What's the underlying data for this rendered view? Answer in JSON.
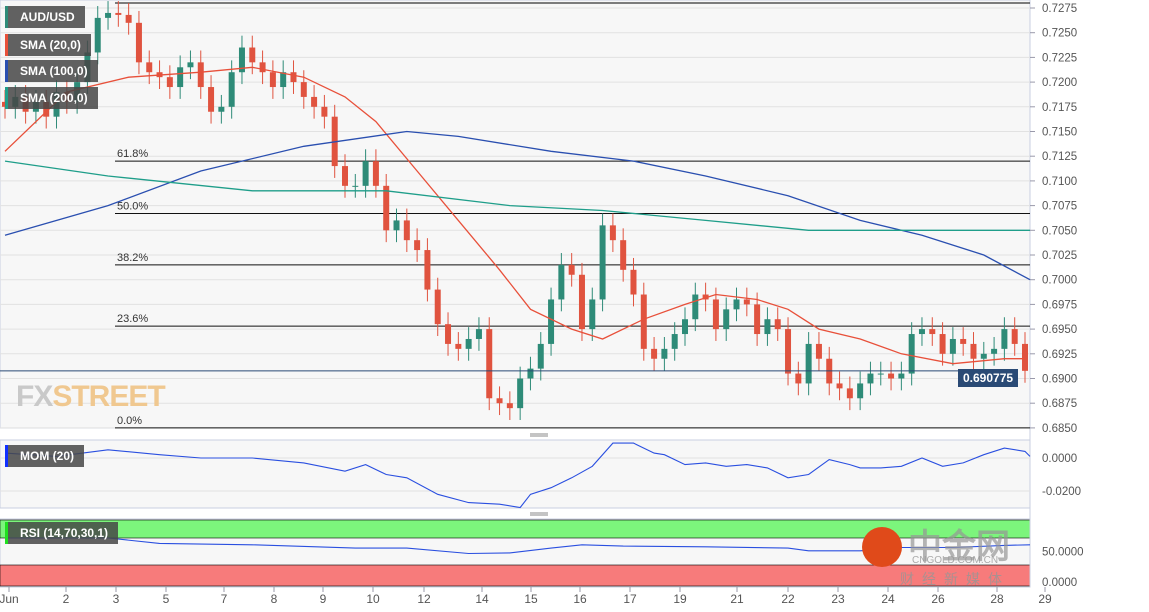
{
  "chart_data": {
    "type": "candlestick",
    "symbol": "AUD/USD",
    "ylim": [
      0.685,
      0.728
    ],
    "yticks": [
      "0.7275",
      "0.7250",
      "0.7225",
      "0.7200",
      "0.7175",
      "0.7150",
      "0.7125",
      "0.7100",
      "0.7075",
      "0.7050",
      "0.7025",
      "0.7000",
      "0.6975",
      "0.6950",
      "0.6925",
      "0.6900",
      "0.6875",
      "0.6850"
    ],
    "xticks": [
      "Jun",
      "2",
      "3",
      "5",
      "7",
      "8",
      "9",
      "10",
      "12",
      "14",
      "15",
      "16",
      "17",
      "19",
      "21",
      "22",
      "23",
      "24",
      "26",
      "28",
      "29"
    ],
    "closes": [
      0.7175,
      0.7185,
      0.717,
      0.718,
      0.7165,
      0.719,
      0.718,
      0.72,
      0.723,
      0.7265,
      0.727,
      0.7268,
      0.726,
      0.722,
      0.721,
      0.7205,
      0.7195,
      0.7215,
      0.722,
      0.7195,
      0.717,
      0.7175,
      0.721,
      0.7235,
      0.722,
      0.721,
      0.7195,
      0.721,
      0.72,
      0.7185,
      0.7175,
      0.7165,
      0.7115,
      0.7095,
      0.7095,
      0.712,
      0.7095,
      0.705,
      0.706,
      0.704,
      0.703,
      0.699,
      0.6955,
      0.6935,
      0.693,
      0.694,
      0.695,
      0.688,
      0.6875,
      0.687,
      0.69,
      0.691,
      0.6935,
      0.698,
      0.7015,
      0.7005,
      0.695,
      0.698,
      0.7055,
      0.704,
      0.701,
      0.6985,
      0.693,
      0.692,
      0.693,
      0.6945,
      0.696,
      0.6985,
      0.698,
      0.695,
      0.697,
      0.698,
      0.6975,
      0.6945,
      0.696,
      0.695,
      0.6905,
      0.6895,
      0.6935,
      0.692,
      0.6895,
      0.689,
      0.688,
      0.6895,
      0.6905,
      0.6905,
      0.69,
      0.6905,
      0.6945,
      0.695,
      0.6945,
      0.6925,
      0.694,
      0.6935,
      0.692,
      0.6925,
      0.693,
      0.695,
      0.6935,
      0.690775
    ],
    "overlays": [
      {
        "name": "SMA (20,0)",
        "color": "#e8503a",
        "points": [
          [
            0,
            0.713
          ],
          [
            6,
            0.719
          ],
          [
            12,
            0.7205
          ],
          [
            19,
            0.721
          ],
          [
            24,
            0.7215
          ],
          [
            29,
            0.7205
          ],
          [
            33,
            0.7185
          ],
          [
            36,
            0.716
          ],
          [
            40,
            0.711
          ],
          [
            44,
            0.706
          ],
          [
            48,
            0.701
          ],
          [
            51,
            0.697
          ],
          [
            55,
            0.695
          ],
          [
            58,
            0.694
          ],
          [
            62,
            0.696
          ],
          [
            66,
            0.6975
          ],
          [
            69,
            0.6985
          ],
          [
            73,
            0.698
          ],
          [
            76,
            0.697
          ],
          [
            79,
            0.695
          ],
          [
            83,
            0.694
          ],
          [
            87,
            0.6925
          ],
          [
            92,
            0.6915
          ],
          [
            97,
            0.692
          ],
          [
            99,
            0.692
          ]
        ]
      },
      {
        "name": "SMA (100,0)",
        "color": "#2a4fb0",
        "points": [
          [
            0,
            0.7045
          ],
          [
            10,
            0.7075
          ],
          [
            19,
            0.711
          ],
          [
            29,
            0.7135
          ],
          [
            39,
            0.715
          ],
          [
            44,
            0.7145
          ],
          [
            53,
            0.713
          ],
          [
            61,
            0.712
          ],
          [
            68,
            0.7105
          ],
          [
            76,
            0.7085
          ],
          [
            83,
            0.706
          ],
          [
            89,
            0.7045
          ],
          [
            95,
            0.7025
          ],
          [
            100,
            0.7
          ]
        ]
      },
      {
        "name": "SMA (200,0)",
        "color": "#1f9e8a",
        "points": [
          [
            0,
            0.712
          ],
          [
            10,
            0.7105
          ],
          [
            24,
            0.709
          ],
          [
            37,
            0.709
          ],
          [
            49,
            0.7075
          ],
          [
            58,
            0.707
          ],
          [
            68,
            0.706
          ],
          [
            78,
            0.705
          ],
          [
            87,
            0.705
          ],
          [
            100,
            0.705
          ]
        ]
      }
    ],
    "fibonacci": [
      {
        "label": "61.8%",
        "value": 0.712
      },
      {
        "label": "50.0%",
        "value": 0.7067
      },
      {
        "label": "38.2%",
        "value": 0.7015
      },
      {
        "label": "23.6%",
        "value": 0.6953
      },
      {
        "label": "0.0%",
        "value": 0.685
      }
    ],
    "last_price": "0.690775",
    "momentum": {
      "label": "MOM (20)",
      "color": "#2a4fe0",
      "yticks": [
        "0.0000",
        "-0.0200"
      ],
      "points": [
        [
          0,
          0.003
        ],
        [
          5,
          0.001
        ],
        [
          10,
          0.005
        ],
        [
          15,
          0.002
        ],
        [
          19,
          0.0
        ],
        [
          24,
          0.0
        ],
        [
          29,
          -0.003
        ],
        [
          33,
          -0.008
        ],
        [
          35,
          -0.004
        ],
        [
          37,
          -0.01
        ],
        [
          39,
          -0.012
        ],
        [
          42,
          -0.022
        ],
        [
          45,
          -0.027
        ],
        [
          48,
          -0.028
        ],
        [
          50,
          -0.03
        ],
        [
          51,
          -0.022
        ],
        [
          53,
          -0.018
        ],
        [
          55,
          -0.012
        ],
        [
          57,
          -0.005
        ],
        [
          59,
          0.009
        ],
        [
          61,
          0.009
        ],
        [
          63,
          0.003
        ],
        [
          64,
          0.002
        ],
        [
          66,
          -0.004
        ],
        [
          68,
          -0.003
        ],
        [
          70,
          -0.005
        ],
        [
          72,
          -0.004
        ],
        [
          74,
          -0.006
        ],
        [
          76,
          -0.012
        ],
        [
          78,
          -0.01
        ],
        [
          80,
          -0.001
        ],
        [
          82,
          -0.004
        ],
        [
          83,
          -0.006
        ],
        [
          85,
          -0.006
        ],
        [
          87,
          -0.005
        ],
        [
          89,
          0.0
        ],
        [
          91,
          -0.005
        ],
        [
          93,
          -0.003
        ],
        [
          95,
          0.002
        ],
        [
          97,
          0.006
        ],
        [
          99,
          0.004
        ],
        [
          100,
          0.001
        ]
      ]
    },
    "rsi": {
      "label": "RSI (14,70,30,1)",
      "color": "#2a4fe0",
      "overbought": 70,
      "oversold": 30,
      "yticks": [
        "50.0000",
        "0.0000"
      ],
      "points": [
        [
          0,
          70
        ],
        [
          10,
          70
        ],
        [
          15,
          62
        ],
        [
          24,
          60
        ],
        [
          34,
          55
        ],
        [
          39,
          55
        ],
        [
          45,
          47
        ],
        [
          49,
          48
        ],
        [
          53,
          55
        ],
        [
          56,
          60
        ],
        [
          60,
          58
        ],
        [
          68,
          57
        ],
        [
          76,
          55
        ],
        [
          78,
          51
        ],
        [
          83,
          51
        ],
        [
          87,
          56
        ],
        [
          92,
          56
        ],
        [
          97,
          59
        ],
        [
          100,
          60
        ]
      ]
    },
    "colors": {
      "up": "#2e8b78",
      "down": "#e0533f",
      "overbought_zone": "#7cf57c",
      "oversold_zone": "#f77b7b"
    }
  },
  "logo": {
    "fx": "FX",
    "street": "STREET"
  },
  "watermark": {
    "title": "中金网",
    "site": "CNGOLD.COM.CN",
    "tagline": "财经新媒体"
  }
}
